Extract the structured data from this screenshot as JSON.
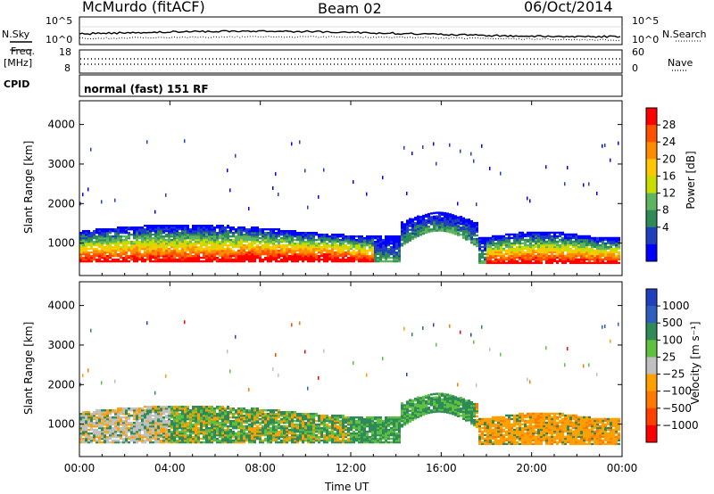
{
  "header": {
    "station": "McMurdo (fitACF)",
    "beam": "Beam 02",
    "date": "06/Oct/2014"
  },
  "status_panel": {
    "nsky_label": "N.Sky",
    "nsearch_label": "N.Search",
    "freq_label_1": "Freq.",
    "freq_label_2": "[MHz]",
    "nave_label": "Nave",
    "cpid_label": "CPID",
    "cpid_value": "normal (fast) 151 RF",
    "noise_left_top": "10^5",
    "noise_left_bottom": "10^0",
    "noise_right_top": "10^5",
    "noise_right_bottom": "10^0",
    "freq_ticks": [
      "18",
      "8"
    ],
    "nave_ticks": [
      "60",
      "0"
    ]
  },
  "chart_data": [
    {
      "type": "heatmap",
      "name": "power",
      "ylabel": "Slant Range [km]",
      "xlabel": "",
      "ylim": [
        180,
        4600
      ],
      "yticks": [
        1000,
        2000,
        3000,
        4000
      ],
      "colorbar_label": "Power [dB]",
      "colorbar_ticks": [
        "28",
        "24",
        "20",
        "16",
        "12",
        "8",
        "4"
      ],
      "colorbar_colors": [
        "#ff0000",
        "#ff5000",
        "#ff8c00",
        "#ffc800",
        "#c8dc00",
        "#5fb45f",
        "#2e8b57",
        "#1f3fbf",
        "#0000ff"
      ]
    },
    {
      "type": "heatmap",
      "name": "velocity",
      "ylabel": "Slant Range [km]",
      "xlabel": "Time UT",
      "ylim": [
        180,
        4600
      ],
      "yticks": [
        1000,
        2000,
        3000,
        4000
      ],
      "colorbar_label": "Velocity [m s⁻¹]",
      "colorbar_ticks": [
        "1000",
        "500",
        "100",
        "25",
        "−25",
        "−100",
        "−500",
        "−1000"
      ],
      "colorbar_colors": [
        "#1f3fbf",
        "#2e5fbf",
        "#2e8b57",
        "#5fc040",
        "#c0c0c0",
        "#ffa000",
        "#ff7800",
        "#ff4000",
        "#ff0000"
      ],
      "xticks": [
        "00:00",
        "04:00",
        "08:00",
        "12:00",
        "16:00",
        "20:00",
        "00:00"
      ]
    }
  ]
}
